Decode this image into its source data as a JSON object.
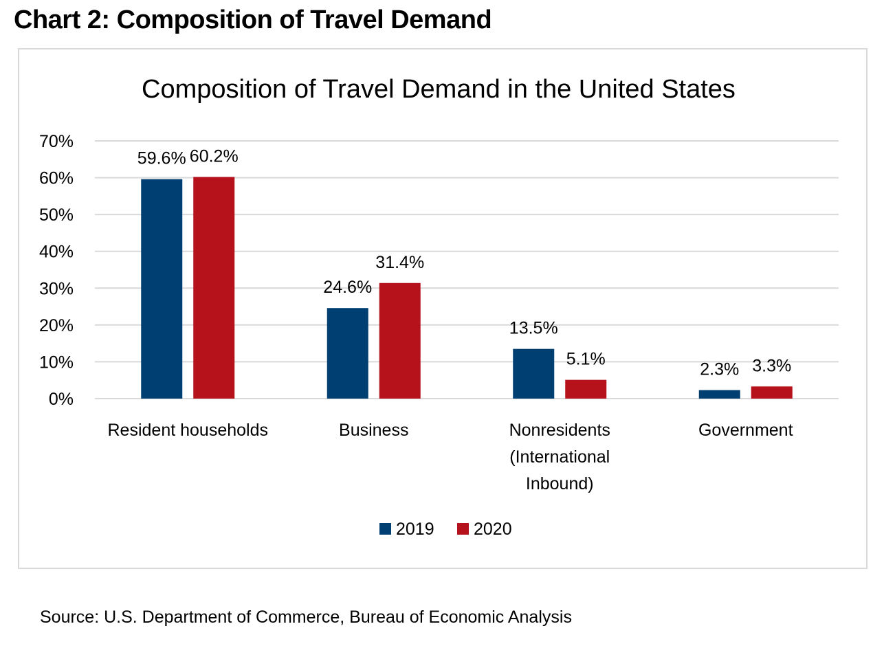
{
  "heading": "Chart 2: Composition of Travel Demand",
  "source": "Source: U.S. Department of Commerce, Bureau of Economic Analysis",
  "chart_data": {
    "type": "bar",
    "title": "Composition of Travel Demand in the United States",
    "xlabel": "",
    "ylabel": "",
    "categories": [
      "Resident households",
      "Business",
      "Nonresidents (International Inbound)",
      "Government"
    ],
    "category_lines": [
      [
        "Resident households"
      ],
      [
        "Business"
      ],
      [
        "Nonresidents",
        "(International",
        "Inbound)"
      ],
      [
        "Government"
      ]
    ],
    "series": [
      {
        "name": "2019",
        "values": [
          59.6,
          24.6,
          13.5,
          2.3
        ],
        "labels": [
          "59.6%",
          "24.6%",
          "13.5%",
          "2.3%"
        ],
        "color": "#003F72"
      },
      {
        "name": "2020",
        "values": [
          60.2,
          31.4,
          5.1,
          3.3
        ],
        "labels": [
          "60.2%",
          "31.4%",
          "5.1%",
          "3.3%"
        ],
        "color": "#B5121B"
      }
    ],
    "ylim": [
      0,
      70
    ],
    "yticks": [
      0,
      10,
      20,
      30,
      40,
      50,
      60,
      70
    ],
    "ytick_labels": [
      "0%",
      "10%",
      "20%",
      "30%",
      "40%",
      "50%",
      "60%",
      "70%"
    ],
    "grid": true,
    "gridline_color": "#d9d9d9",
    "legend_position": "bottom"
  }
}
